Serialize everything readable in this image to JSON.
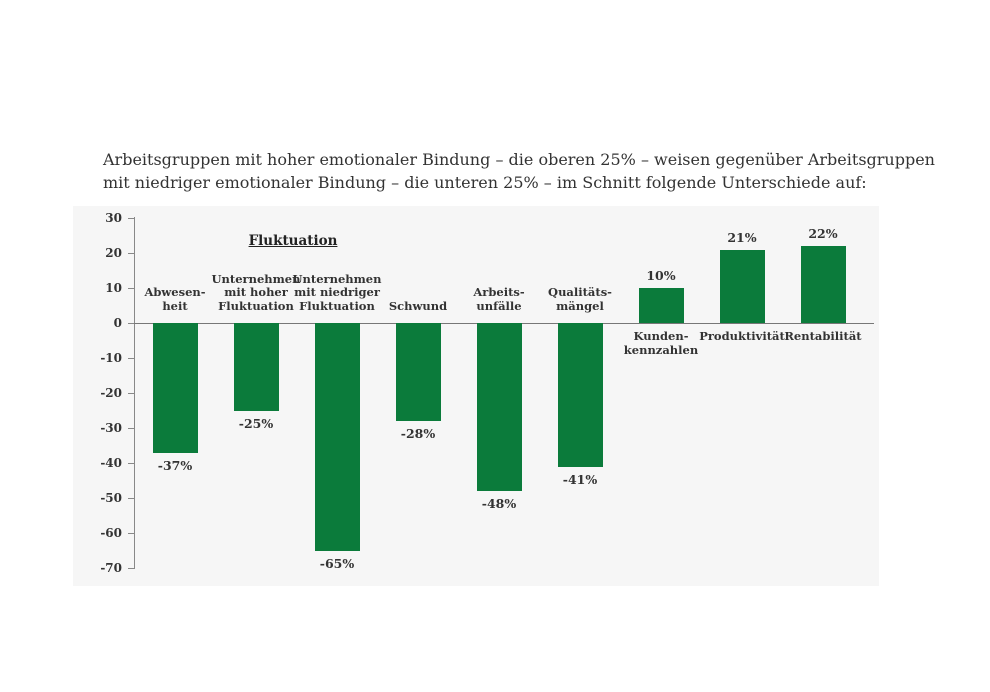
{
  "page": {
    "title_lines": [
      "Arbeitsgruppen mit hoher emotionaler Bindung – die oberen 25% – weisen gegenüber Arbeitsgruppen",
      "mit niedriger emotionaler Bindung – die unteren 25% – im Schnitt folgende Unterschiede auf:"
    ]
  },
  "chart_data": {
    "type": "bar",
    "title": "Arbeitsgruppen mit hoher emotionaler Bindung – die oberen 25% – weisen gegenüber Arbeitsgruppen mit niedriger emotionaler Bindung – die unteren 25% – im Schnitt folgende Unterschiede auf:",
    "categories": [
      "Abwesen-\nheit",
      "Unternehmen\nmit hoher\nFluktuation",
      "Unternehmen\nmit niedriger\nFluktuation",
      "Schwund",
      "Arbeits-\nunfälle",
      "Qualitäts-\nmängel",
      "Kunden-\nkennzahlen",
      "Produktivität",
      "Rentabilität"
    ],
    "values": [
      -37,
      -25,
      -65,
      -28,
      -48,
      -41,
      10,
      21,
      22
    ],
    "data_labels": [
      "-37%",
      "-25%",
      "-65%",
      "-28%",
      "-48%",
      "-41%",
      "10%",
      "21%",
      "22%"
    ],
    "group_label": "Fluktuation",
    "yticks": [
      "30",
      "20",
      "10",
      "0",
      "-10",
      "-20",
      "-30",
      "-40",
      "-50",
      "-60",
      "-70"
    ],
    "ylim": [
      -70,
      30
    ],
    "xlabel": "",
    "ylabel": "",
    "bar_color": "#0b7b3b"
  }
}
